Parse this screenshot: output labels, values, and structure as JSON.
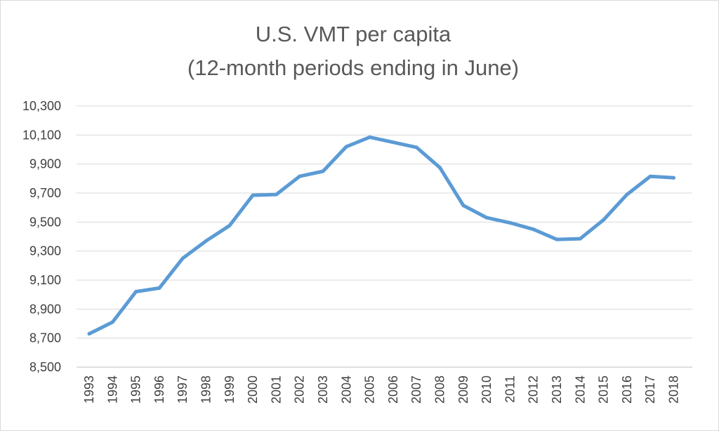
{
  "chart_data": {
    "type": "line",
    "title": "U.S. VMT per capita",
    "subtitle": "(12-month periods ending in June)",
    "xlabel": "",
    "ylabel": "",
    "ylim": [
      8500,
      10300
    ],
    "yticks": [
      8500,
      8700,
      8900,
      9100,
      9300,
      9500,
      9700,
      9900,
      10100,
      10300
    ],
    "ytick_labels": [
      "8,500",
      "8,700",
      "8,900",
      "9,100",
      "9,300",
      "9,500",
      "9,700",
      "9,900",
      "10,100",
      "10,300"
    ],
    "grid": true,
    "legend": false,
    "colors": {
      "line": "#5b9bd5",
      "grid": "#d9d9d9",
      "text": "#595959"
    },
    "x": [
      "1993",
      "1994",
      "1995",
      "1996",
      "1997",
      "1998",
      "1999",
      "2000",
      "2001",
      "2002",
      "2003",
      "2004",
      "2005",
      "2006",
      "2007",
      "2008",
      "2009",
      "2010",
      "2011",
      "2012",
      "2013",
      "2014",
      "2015",
      "2016",
      "2017",
      "2018"
    ],
    "series": [
      {
        "values": [
          8730,
          8810,
          9020,
          9045,
          9250,
          9370,
          9475,
          9685,
          9690,
          9815,
          9850,
          10020,
          10085,
          10050,
          10015,
          9875,
          9615,
          9530,
          9495,
          9450,
          9380,
          9385,
          9515,
          9690,
          9815,
          9805
        ]
      }
    ]
  }
}
